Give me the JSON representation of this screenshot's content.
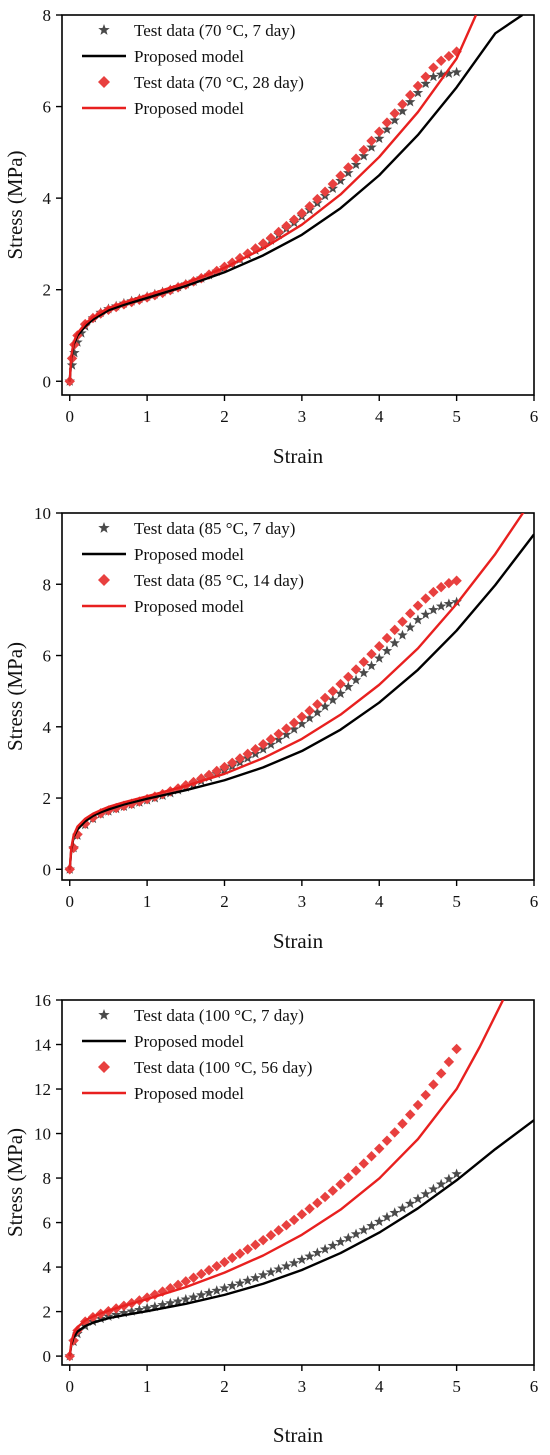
{
  "chart_data": [
    {
      "type": "line",
      "xlabel": "Strain",
      "ylabel": "Stress (MPa)",
      "xlim": [
        -0.1,
        6
      ],
      "ylim": [
        -0.3,
        8
      ],
      "xticks": [
        0,
        1,
        2,
        3,
        4,
        5,
        6
      ],
      "yticks": [
        0,
        2,
        4,
        6,
        8
      ],
      "legend_position": "top-left",
      "series": [
        {
          "name": "Test data (70 °C, 7 day)",
          "kind": "scatter",
          "marker": "star",
          "color": "#4a4a4a",
          "x": [
            0,
            0.03,
            0.06,
            0.1,
            0.15,
            0.2,
            0.3,
            0.4,
            0.5,
            0.6,
            0.7,
            0.8,
            0.9,
            1.0,
            1.1,
            1.2,
            1.3,
            1.4,
            1.5,
            1.6,
            1.7,
            1.8,
            1.9,
            2.0,
            2.1,
            2.2,
            2.3,
            2.4,
            2.5,
            2.6,
            2.7,
            2.8,
            2.9,
            3.0,
            3.1,
            3.2,
            3.3,
            3.4,
            3.5,
            3.6,
            3.7,
            3.8,
            3.9,
            4.0,
            4.1,
            4.2,
            4.3,
            4.4,
            4.5,
            4.6,
            4.7,
            4.8,
            4.9,
            5.0
          ],
          "y": [
            0,
            0.35,
            0.62,
            0.85,
            1.05,
            1.2,
            1.38,
            1.5,
            1.58,
            1.64,
            1.7,
            1.75,
            1.8,
            1.85,
            1.9,
            1.95,
            2.0,
            2.06,
            2.12,
            2.18,
            2.25,
            2.32,
            2.4,
            2.48,
            2.57,
            2.66,
            2.76,
            2.86,
            2.97,
            3.08,
            3.2,
            3.33,
            3.46,
            3.6,
            3.74,
            3.89,
            4.05,
            4.21,
            4.38,
            4.55,
            4.73,
            4.92,
            5.11,
            5.3,
            5.5,
            5.7,
            5.9,
            6.1,
            6.3,
            6.5,
            6.65,
            6.7,
            6.72,
            6.75
          ]
        },
        {
          "name": "Proposed model",
          "kind": "line",
          "color": "#000000",
          "x": [
            0,
            0.02,
            0.05,
            0.1,
            0.2,
            0.3,
            0.4,
            0.5,
            0.7,
            1.0,
            1.5,
            2.0,
            2.5,
            3.0,
            3.5,
            4.0,
            4.5,
            5.0,
            5.5,
            5.85
          ],
          "y": [
            0,
            0.5,
            0.8,
            1.0,
            1.2,
            1.35,
            1.45,
            1.55,
            1.67,
            1.82,
            2.08,
            2.38,
            2.75,
            3.2,
            3.78,
            4.5,
            5.38,
            6.42,
            7.6,
            8.0
          ]
        },
        {
          "name": "Test data (70 °C, 28 day)",
          "kind": "scatter",
          "marker": "diamond",
          "color": "#e8403f",
          "x": [
            0,
            0.03,
            0.06,
            0.1,
            0.2,
            0.3,
            0.4,
            0.5,
            0.6,
            0.7,
            0.8,
            0.9,
            1.0,
            1.1,
            1.2,
            1.3,
            1.4,
            1.5,
            1.6,
            1.7,
            1.8,
            1.9,
            2.0,
            2.1,
            2.2,
            2.3,
            2.4,
            2.5,
            2.6,
            2.7,
            2.8,
            2.9,
            3.0,
            3.1,
            3.2,
            3.3,
            3.4,
            3.5,
            3.6,
            3.7,
            3.8,
            3.9,
            4.0,
            4.1,
            4.2,
            4.3,
            4.4,
            4.5,
            4.6,
            4.7,
            4.8,
            4.9,
            5.0
          ],
          "y": [
            0,
            0.5,
            0.8,
            1.0,
            1.25,
            1.38,
            1.48,
            1.56,
            1.62,
            1.68,
            1.73,
            1.78,
            1.83,
            1.88,
            1.93,
            1.99,
            2.05,
            2.11,
            2.18,
            2.25,
            2.33,
            2.41,
            2.5,
            2.59,
            2.69,
            2.79,
            2.9,
            3.01,
            3.13,
            3.26,
            3.39,
            3.53,
            3.67,
            3.82,
            3.98,
            4.14,
            4.31,
            4.49,
            4.67,
            4.86,
            5.05,
            5.25,
            5.45,
            5.65,
            5.85,
            6.05,
            6.25,
            6.45,
            6.65,
            6.85,
            7.0,
            7.1,
            7.2
          ]
        },
        {
          "name": "Proposed model",
          "kind": "line",
          "color": "#e8201f",
          "x": [
            0,
            0.02,
            0.05,
            0.1,
            0.2,
            0.3,
            0.4,
            0.5,
            0.7,
            1.0,
            1.5,
            2.0,
            2.5,
            3.0,
            3.5,
            4.0,
            4.5,
            5.0,
            5.25
          ],
          "y": [
            0,
            0.55,
            0.85,
            1.05,
            1.26,
            1.4,
            1.5,
            1.6,
            1.72,
            1.88,
            2.15,
            2.48,
            2.9,
            3.42,
            4.08,
            4.9,
            5.88,
            7.05,
            8.0
          ]
        }
      ]
    },
    {
      "type": "line",
      "xlabel": "Strain",
      "ylabel": "Stress (MPa)",
      "xlim": [
        -0.1,
        6
      ],
      "ylim": [
        -0.3,
        10
      ],
      "xticks": [
        0,
        1,
        2,
        3,
        4,
        5,
        6
      ],
      "yticks": [
        0,
        2,
        4,
        6,
        8,
        10
      ],
      "legend_position": "top-left",
      "series": [
        {
          "name": "Test data (85 °C, 7 day)",
          "kind": "scatter",
          "marker": "star",
          "color": "#4a4a4a",
          "x": [
            0,
            0.05,
            0.1,
            0.2,
            0.3,
            0.4,
            0.5,
            0.6,
            0.7,
            0.8,
            0.9,
            1.0,
            1.1,
            1.2,
            1.3,
            1.4,
            1.5,
            1.6,
            1.7,
            1.8,
            1.9,
            2.0,
            2.1,
            2.2,
            2.3,
            2.4,
            2.5,
            2.6,
            2.7,
            2.8,
            2.9,
            3.0,
            3.1,
            3.2,
            3.3,
            3.4,
            3.5,
            3.6,
            3.7,
            3.8,
            3.9,
            4.0,
            4.1,
            4.2,
            4.3,
            4.4,
            4.5,
            4.6,
            4.7,
            4.8,
            4.9,
            5.0
          ],
          "y": [
            0,
            0.6,
            0.95,
            1.25,
            1.42,
            1.55,
            1.63,
            1.7,
            1.76,
            1.82,
            1.88,
            1.94,
            2.0,
            2.07,
            2.14,
            2.22,
            2.3,
            2.39,
            2.48,
            2.58,
            2.68,
            2.78,
            2.89,
            3.0,
            3.12,
            3.24,
            3.37,
            3.5,
            3.64,
            3.78,
            3.93,
            4.08,
            4.24,
            4.4,
            4.57,
            4.75,
            4.93,
            5.12,
            5.31,
            5.51,
            5.71,
            5.92,
            6.13,
            6.35,
            6.57,
            6.79,
            7.0,
            7.15,
            7.28,
            7.38,
            7.45,
            7.5
          ]
        },
        {
          "name": "Proposed model",
          "kind": "line",
          "color": "#000000",
          "x": [
            0,
            0.02,
            0.05,
            0.1,
            0.2,
            0.3,
            0.4,
            0.5,
            0.7,
            1.0,
            1.5,
            2.0,
            2.5,
            3.0,
            3.5,
            4.0,
            4.5,
            5.0,
            5.5,
            6.0
          ],
          "y": [
            0,
            0.55,
            0.9,
            1.12,
            1.35,
            1.5,
            1.6,
            1.68,
            1.82,
            1.98,
            2.22,
            2.5,
            2.86,
            3.32,
            3.92,
            4.68,
            5.6,
            6.7,
            7.98,
            9.4
          ]
        },
        {
          "name": "Test data (85 °C, 14 day)",
          "kind": "scatter",
          "marker": "diamond",
          "color": "#e8403f",
          "x": [
            0,
            0.05,
            0.1,
            0.2,
            0.3,
            0.4,
            0.5,
            0.6,
            0.7,
            0.8,
            0.9,
            1.0,
            1.1,
            1.2,
            1.3,
            1.4,
            1.5,
            1.6,
            1.7,
            1.8,
            1.9,
            2.0,
            2.1,
            2.2,
            2.3,
            2.4,
            2.5,
            2.6,
            2.7,
            2.8,
            2.9,
            3.0,
            3.1,
            3.2,
            3.3,
            3.4,
            3.5,
            3.6,
            3.7,
            3.8,
            3.9,
            4.0,
            4.1,
            4.2,
            4.3,
            4.4,
            4.5,
            4.6,
            4.7,
            4.8,
            4.9,
            5.0
          ],
          "y": [
            0,
            0.6,
            0.98,
            1.28,
            1.45,
            1.57,
            1.65,
            1.72,
            1.78,
            1.84,
            1.9,
            1.97,
            2.04,
            2.11,
            2.19,
            2.27,
            2.36,
            2.45,
            2.55,
            2.65,
            2.76,
            2.87,
            2.99,
            3.11,
            3.24,
            3.37,
            3.51,
            3.65,
            3.8,
            3.95,
            4.11,
            4.28,
            4.45,
            4.63,
            4.81,
            5.0,
            5.2,
            5.4,
            5.61,
            5.82,
            6.04,
            6.26,
            6.49,
            6.72,
            6.95,
            7.18,
            7.4,
            7.6,
            7.78,
            7.92,
            8.03,
            8.1
          ]
        },
        {
          "name": "Proposed model",
          "kind": "line",
          "color": "#e8201f",
          "x": [
            0,
            0.02,
            0.05,
            0.1,
            0.2,
            0.3,
            0.4,
            0.5,
            0.7,
            1.0,
            1.5,
            2.0,
            2.5,
            3.0,
            3.5,
            4.0,
            4.5,
            5.0,
            5.5,
            5.95
          ],
          "y": [
            0,
            0.6,
            0.95,
            1.2,
            1.42,
            1.56,
            1.66,
            1.75,
            1.88,
            2.05,
            2.34,
            2.68,
            3.12,
            3.66,
            4.34,
            5.18,
            6.2,
            7.45,
            8.85,
            10.3
          ]
        }
      ]
    },
    {
      "type": "line",
      "xlabel": "Strain",
      "ylabel": "Stress (MPa)",
      "xlim": [
        -0.1,
        6
      ],
      "ylim": [
        -0.4,
        16
      ],
      "xticks": [
        0,
        1,
        2,
        3,
        4,
        5,
        6
      ],
      "yticks": [
        0,
        2,
        4,
        6,
        8,
        10,
        12,
        14,
        16
      ],
      "legend_position": "top-left",
      "series": [
        {
          "name": "Test data (100 °C, 7 day)",
          "kind": "scatter",
          "marker": "star",
          "color": "#4a4a4a",
          "x": [
            0,
            0.05,
            0.1,
            0.2,
            0.3,
            0.4,
            0.5,
            0.6,
            0.7,
            0.8,
            0.9,
            1.0,
            1.1,
            1.2,
            1.3,
            1.4,
            1.5,
            1.6,
            1.7,
            1.8,
            1.9,
            2.0,
            2.1,
            2.2,
            2.3,
            2.4,
            2.5,
            2.6,
            2.7,
            2.8,
            2.9,
            3.0,
            3.1,
            3.2,
            3.3,
            3.4,
            3.5,
            3.6,
            3.7,
            3.8,
            3.9,
            4.0,
            4.1,
            4.2,
            4.3,
            4.4,
            4.5,
            4.6,
            4.7,
            4.8,
            4.9,
            5.0
          ],
          "y": [
            0,
            0.65,
            1.0,
            1.35,
            1.55,
            1.68,
            1.78,
            1.86,
            1.94,
            2.01,
            2.08,
            2.15,
            2.22,
            2.3,
            2.38,
            2.46,
            2.55,
            2.64,
            2.74,
            2.84,
            2.94,
            3.05,
            3.16,
            3.27,
            3.39,
            3.51,
            3.64,
            3.77,
            3.9,
            4.04,
            4.18,
            4.33,
            4.48,
            4.64,
            4.8,
            4.96,
            5.13,
            5.3,
            5.48,
            5.66,
            5.85,
            6.04,
            6.24,
            6.44,
            6.64,
            6.85,
            7.06,
            7.28,
            7.5,
            7.72,
            7.95,
            8.18
          ]
        },
        {
          "name": "Proposed model",
          "kind": "line",
          "color": "#000000",
          "x": [
            0,
            0.02,
            0.05,
            0.1,
            0.2,
            0.3,
            0.4,
            0.5,
            0.7,
            1.0,
            1.5,
            2.0,
            2.5,
            3.0,
            3.5,
            4.0,
            4.5,
            5.0,
            5.5,
            6.0
          ],
          "y": [
            0,
            0.5,
            0.85,
            1.1,
            1.35,
            1.5,
            1.6,
            1.7,
            1.84,
            2.02,
            2.35,
            2.75,
            3.25,
            3.87,
            4.63,
            5.55,
            6.64,
            7.9,
            9.3,
            10.6
          ]
        },
        {
          "name": "Test data (100 °C, 56 day)",
          "kind": "scatter",
          "marker": "diamond",
          "color": "#e8403f",
          "x": [
            0,
            0.05,
            0.1,
            0.2,
            0.3,
            0.4,
            0.5,
            0.6,
            0.7,
            0.8,
            0.9,
            1.0,
            1.1,
            1.2,
            1.3,
            1.4,
            1.5,
            1.6,
            1.7,
            1.8,
            1.9,
            2.0,
            2.1,
            2.2,
            2.3,
            2.4,
            2.5,
            2.6,
            2.7,
            2.8,
            2.9,
            3.0,
            3.1,
            3.2,
            3.3,
            3.4,
            3.5,
            3.6,
            3.7,
            3.8,
            3.9,
            4.0,
            4.1,
            4.2,
            4.3,
            4.4,
            4.5,
            4.6,
            4.7,
            4.8,
            4.9,
            5.0
          ],
          "y": [
            0,
            0.7,
            1.15,
            1.55,
            1.75,
            1.9,
            2.02,
            2.14,
            2.26,
            2.38,
            2.5,
            2.63,
            2.76,
            2.9,
            3.05,
            3.2,
            3.36,
            3.52,
            3.69,
            3.86,
            4.04,
            4.22,
            4.41,
            4.6,
            4.8,
            5.0,
            5.21,
            5.43,
            5.65,
            5.88,
            6.12,
            6.37,
            6.62,
            6.88,
            7.15,
            7.43,
            7.72,
            8.02,
            8.33,
            8.65,
            8.98,
            9.32,
            9.68,
            10.05,
            10.44,
            10.85,
            11.28,
            11.73,
            12.2,
            12.7,
            13.22,
            13.8
          ]
        },
        {
          "name": "Proposed model",
          "kind": "line",
          "color": "#e8201f",
          "x": [
            0,
            0.02,
            0.05,
            0.1,
            0.2,
            0.3,
            0.4,
            0.5,
            0.7,
            1.0,
            1.5,
            2.0,
            2.5,
            3.0,
            3.5,
            4.0,
            4.5,
            5.0,
            5.3,
            5.6
          ],
          "y": [
            0,
            0.6,
            1.0,
            1.3,
            1.6,
            1.78,
            1.92,
            2.04,
            2.26,
            2.56,
            3.1,
            3.75,
            4.52,
            5.45,
            6.58,
            7.98,
            9.75,
            12.0,
            13.9,
            16.0
          ]
        }
      ]
    }
  ]
}
